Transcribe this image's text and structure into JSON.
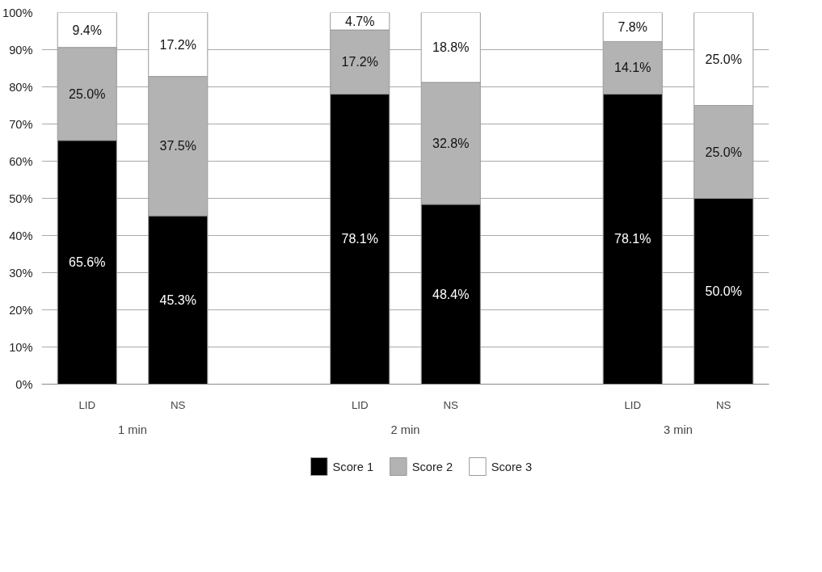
{
  "chart_data": {
    "type": "bar",
    "stacked": true,
    "categories": [
      "LID",
      "NS",
      null,
      "LID",
      "NS",
      null,
      "LID",
      "NS"
    ],
    "series": [
      {
        "name": "Score 1",
        "color": "#000000",
        "values": [
          65.6,
          45.3,
          null,
          78.1,
          48.4,
          null,
          78.1,
          50.0
        ],
        "value_labels": [
          "65.6%",
          "45.3%",
          null,
          "78.1%",
          "48.4%",
          null,
          "78.1%",
          "50.0%"
        ]
      },
      {
        "name": "Score 2",
        "color": "#b3b3b3",
        "values": [
          25.0,
          37.5,
          null,
          17.2,
          32.8,
          null,
          14.1,
          25.0
        ],
        "value_labels": [
          "25.0%",
          "37.5%",
          null,
          "17.2%",
          "32.8%",
          null,
          "14.1%",
          "25.0%"
        ]
      },
      {
        "name": "Score 3",
        "color": "#ffffff",
        "values": [
          9.4,
          17.2,
          null,
          4.7,
          18.8,
          null,
          7.8,
          25.0
        ],
        "value_labels": [
          "9.4%",
          "17.2%",
          null,
          "4.7%",
          "18.8%",
          null,
          "7.8%",
          "25.0%"
        ]
      }
    ],
    "annotations": [
      "1 min",
      "2 min",
      "3 min"
    ],
    "ylim": [
      0,
      100
    ],
    "yticks": [
      {
        "value": 0,
        "label": "0%"
      },
      {
        "value": 10,
        "label": "10%"
      },
      {
        "value": 20,
        "label": "20%"
      },
      {
        "value": 30,
        "label": "30%"
      },
      {
        "value": 40,
        "label": "40%"
      },
      {
        "value": 50,
        "label": "50%"
      },
      {
        "value": 60,
        "label": "60%"
      },
      {
        "value": 70,
        "label": "70%"
      },
      {
        "value": 80,
        "label": "80%"
      },
      {
        "value": 90,
        "label": "90%"
      },
      {
        "value": 100,
        "label": "100%"
      }
    ],
    "grid": "y",
    "legend": "bottom"
  }
}
